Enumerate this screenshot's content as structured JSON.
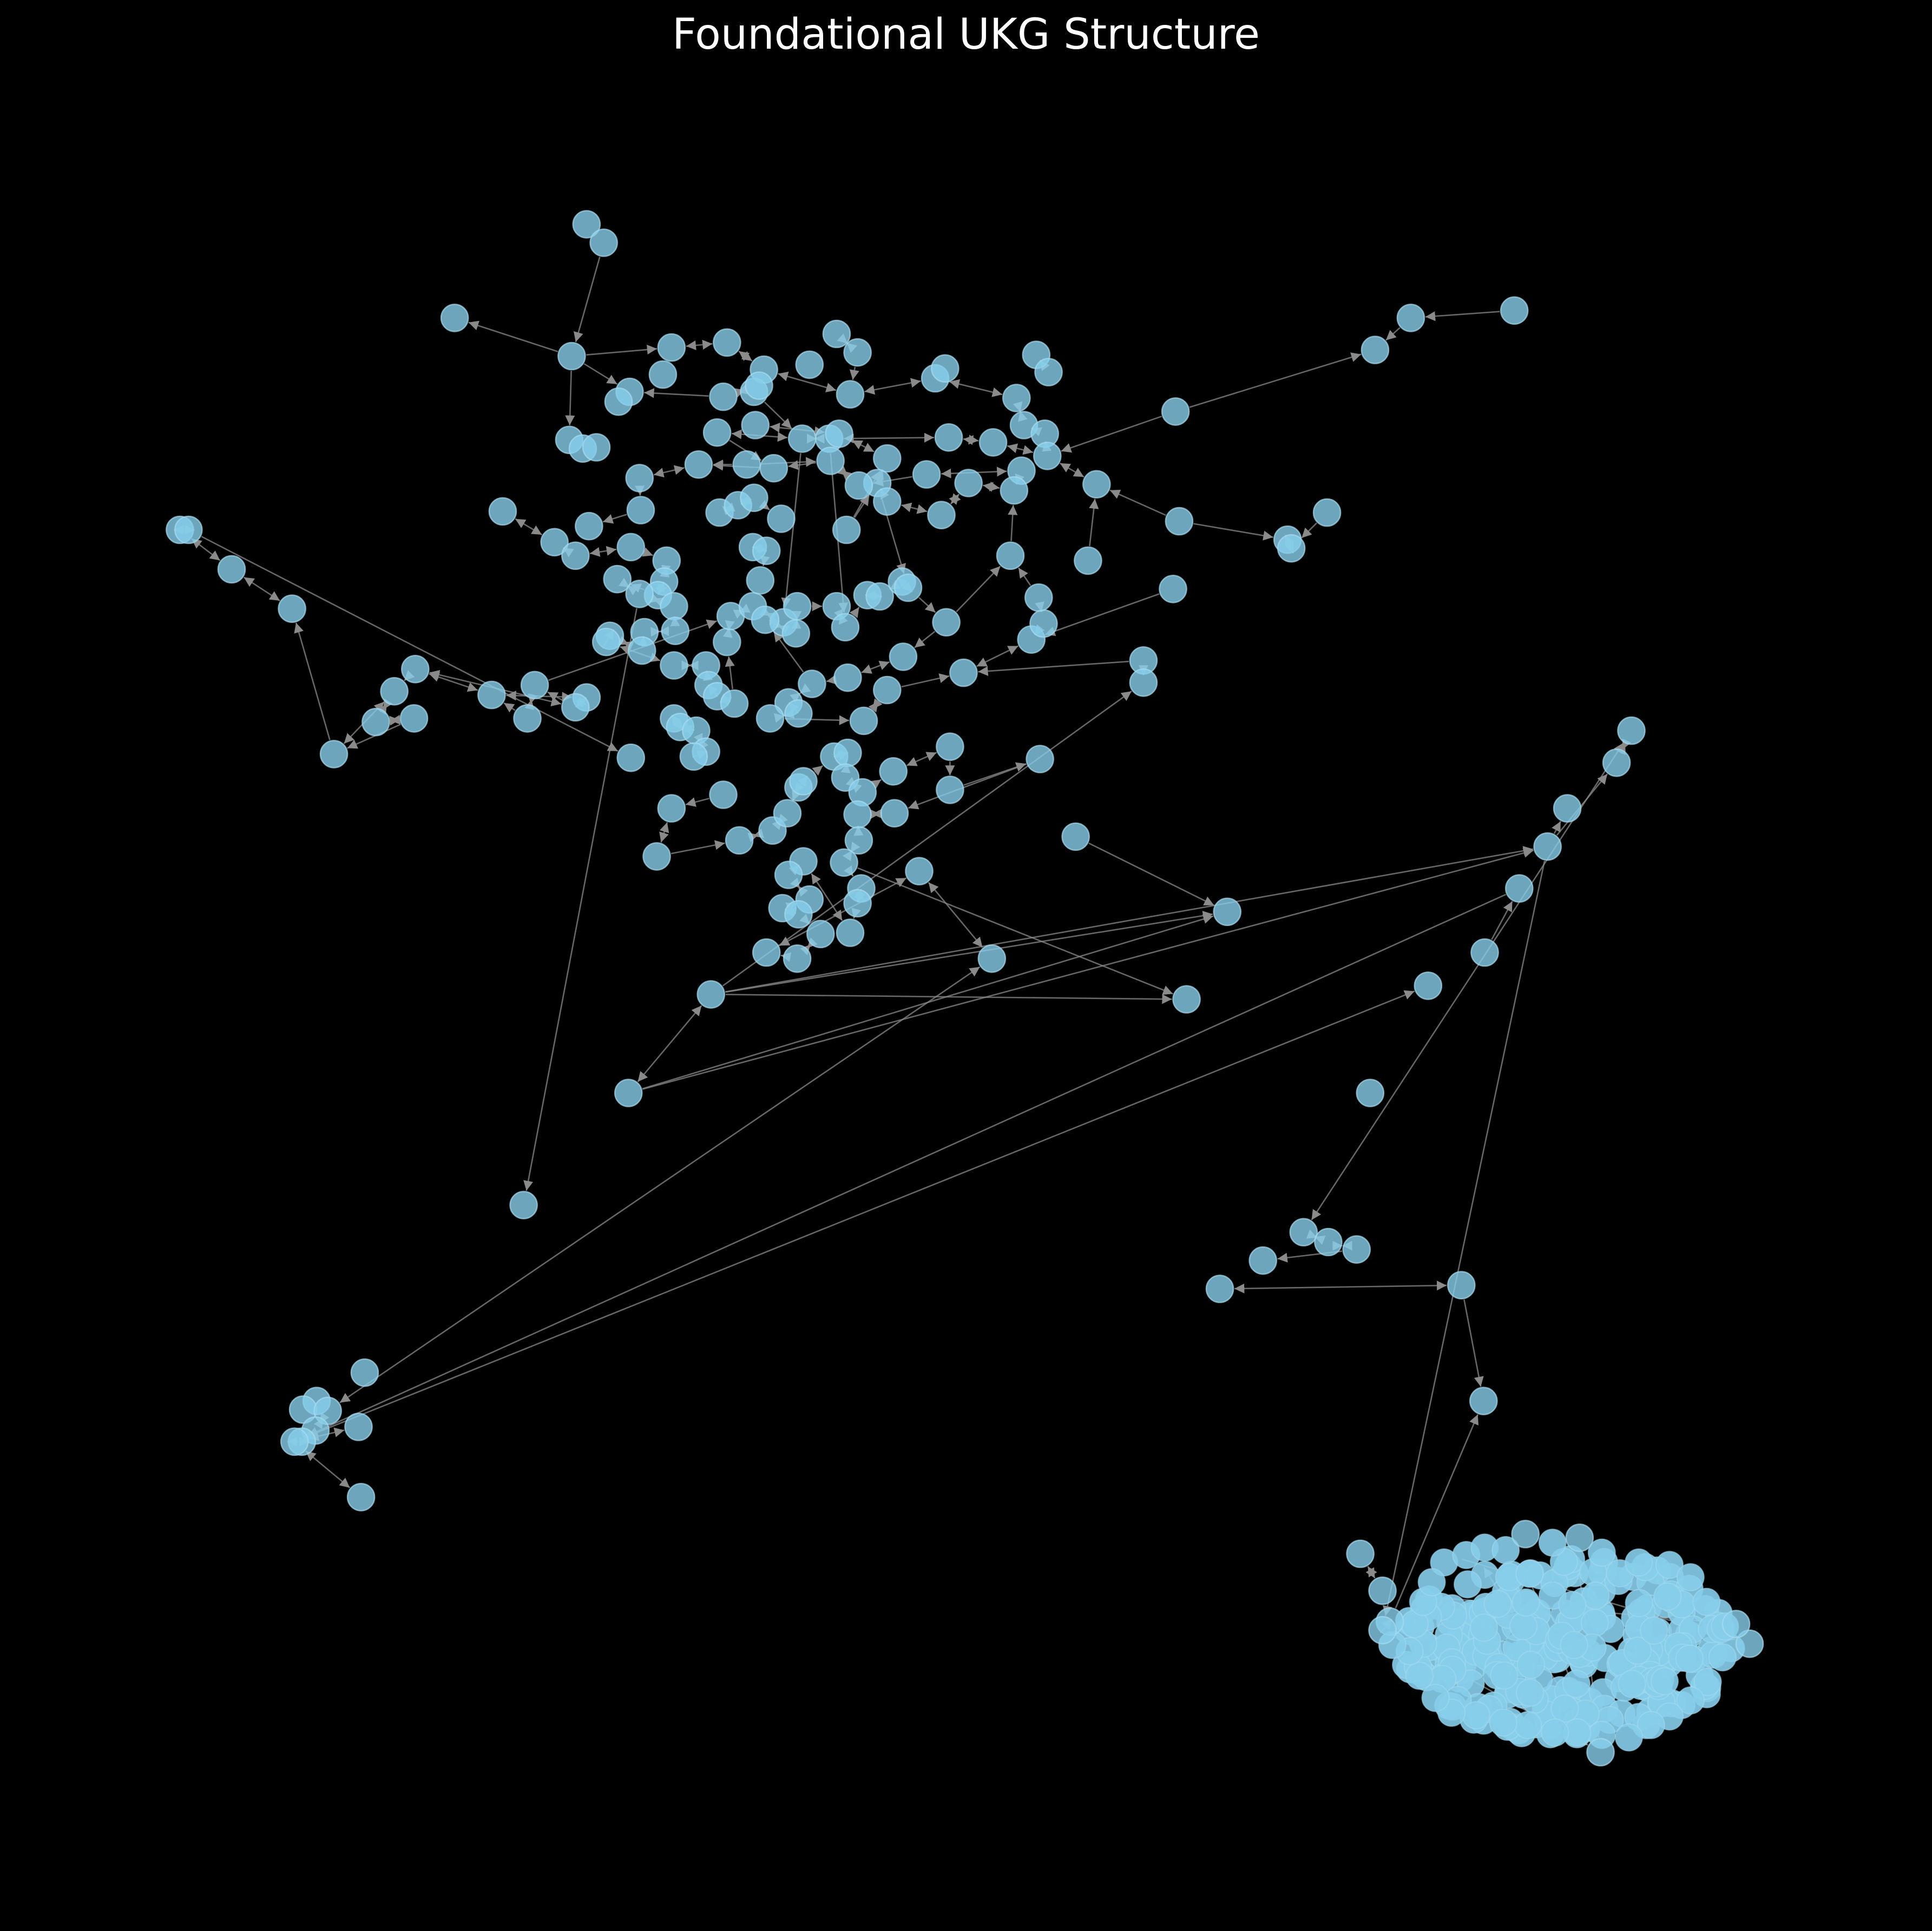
{
  "title": "Foundational UKG Structure",
  "style": {
    "background": "#000000",
    "node_color": "#87CEEB",
    "edge_color": "#8a8a8a",
    "title_color": "#ffffff"
  }
}
